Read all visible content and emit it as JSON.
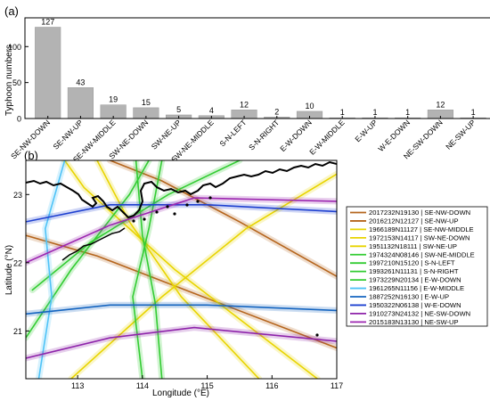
{
  "chart_data": [
    {
      "type": "bar",
      "panel_label": "(a)",
      "ylabel": "Typhoon numbers",
      "ylim": [
        0,
        140
      ],
      "yticks": [
        0,
        50,
        100
      ],
      "bar_color": "#b3b3b3",
      "categories": [
        "SE-NW-DOWN",
        "SE-NW-UP",
        "SE-NW-MIDDLE",
        "SW-NE-DOWN",
        "SW-NE-UP",
        "SW-NE-MIDDLE",
        "S-N-LEFT",
        "S-N-RIGHT",
        "E-W-DOWN",
        "E-W-MIDDLE",
        "E-W-UP",
        "W-E-DOWN",
        "NE-SW-DOWN",
        "NE-SW-UP"
      ],
      "values": [
        127,
        43,
        19,
        15,
        5,
        4,
        12,
        2,
        10,
        1,
        1,
        1,
        12,
        1
      ],
      "value_labels": [
        "127",
        "43",
        "19",
        "15",
        "5",
        "4",
        "12",
        "2",
        "10",
        "1",
        "1",
        "1",
        "12",
        "1"
      ]
    },
    {
      "type": "line",
      "panel_label": "(b)",
      "xlabel": "Longitude (°E)",
      "ylabel": "Latitude (°N)",
      "xlim": [
        112.2,
        117
      ],
      "ylim": [
        20.3,
        23.5
      ],
      "xticks": [
        "113",
        "114",
        "115",
        "116",
        "117"
      ],
      "yticks": [
        "21",
        "22",
        "23"
      ],
      "legend_position": "right",
      "series": [
        {
          "name": "2017232N19130 | SE-NW-DOWN",
          "color": "#b5651d",
          "points": [
            [
              117,
              20.75
            ],
            [
              114.8,
              21.55
            ],
            [
              113.3,
              22.1
            ],
            [
              112.2,
              22.4
            ]
          ]
        },
        {
          "name": "2016212N12127 | SE-NW-UP",
          "color": "#b5651d",
          "points": [
            [
              117,
              21.8
            ],
            [
              115.5,
              22.6
            ],
            [
              114.3,
              23.2
            ],
            [
              113.5,
              23.5
            ]
          ]
        },
        {
          "name": "1966189N11127 | SE-NW-MIDDLE",
          "color": "#e8d400",
          "points": [
            [
              116.7,
              20.3
            ],
            [
              114.5,
              21.9
            ],
            [
              113.1,
              23.1
            ],
            [
              112.8,
              23.5
            ]
          ]
        },
        {
          "name": "1972153N14117 | SW-NE-DOWN",
          "color": "#e8d400",
          "points": [
            [
              112.9,
              20.3
            ],
            [
              114.3,
              21.5
            ],
            [
              115.6,
              22.5
            ],
            [
              117,
              23.3
            ]
          ]
        },
        {
          "name": "1951132N18111 | SW-NE-UP",
          "color": "#e8d400",
          "points": [
            [
              115.8,
              20.3
            ],
            [
              114.6,
              21.5
            ],
            [
              113.8,
              22.6
            ],
            [
              113.3,
              23.5
            ]
          ]
        },
        {
          "name": "1974324N08146 | SW-NE-MIDDLE",
          "color": "#33cc33",
          "points": [
            [
              112.3,
              21.6
            ],
            [
              113.2,
              22.3
            ],
            [
              114.4,
              23.0
            ],
            [
              115.5,
              23.5
            ]
          ]
        },
        {
          "name": "1997210N15120 | S-N-LEFT",
          "color": "#33cc33",
          "points": [
            [
              112.2,
              20.9
            ],
            [
              112.9,
              21.9
            ],
            [
              113.8,
              23.0
            ],
            [
              114.1,
              23.5
            ]
          ]
        },
        {
          "name": "1993261N11131 | S-N-RIGHT",
          "color": "#33cc33",
          "points": [
            [
              114.0,
              20.3
            ],
            [
              113.85,
              21.5
            ],
            [
              114.1,
              22.5
            ],
            [
              114.3,
              23.5
            ]
          ]
        },
        {
          "name": "1973229N20134 | E-W-DOWN",
          "color": "#33cc33",
          "points": [
            [
              114.3,
              20.3
            ],
            [
              114.2,
              21.4
            ],
            [
              114.0,
              22.4
            ],
            [
              113.9,
              23.5
            ]
          ]
        },
        {
          "name": "1961265N11156 | E-W-MIDDLE",
          "color": "#4fc3f7",
          "points": [
            [
              112.4,
              20.3
            ],
            [
              112.6,
              21.5
            ],
            [
              112.5,
              22.5
            ],
            [
              112.8,
              23.5
            ]
          ]
        },
        {
          "name": "1887252N16130 | E-W-UP",
          "color": "#1565c0",
          "points": [
            [
              112.2,
              21.25
            ],
            [
              113.5,
              21.38
            ],
            [
              115.0,
              21.38
            ],
            [
              117,
              21.3
            ]
          ]
        },
        {
          "name": "1950322N06138 | W-E-DOWN",
          "color": "#1e40d0",
          "points": [
            [
              112.2,
              22.6
            ],
            [
              113.5,
              22.85
            ],
            [
              115.0,
              22.85
            ],
            [
              117,
              22.75
            ]
          ]
        },
        {
          "name": "1910273N24132 | NE-SW-DOWN",
          "color": "#8e24aa",
          "points": [
            [
              112.2,
              20.6
            ],
            [
              113.5,
              20.9
            ],
            [
              114.8,
              21.05
            ],
            [
              117,
              20.85
            ]
          ]
        },
        {
          "name": "2015183N13130 | NE-SW-UP",
          "color": "#9c27b0",
          "points": [
            [
              112.2,
              22.0
            ],
            [
              113.5,
              22.55
            ],
            [
              114.8,
              22.95
            ],
            [
              117,
              22.9
            ]
          ]
        }
      ]
    }
  ]
}
